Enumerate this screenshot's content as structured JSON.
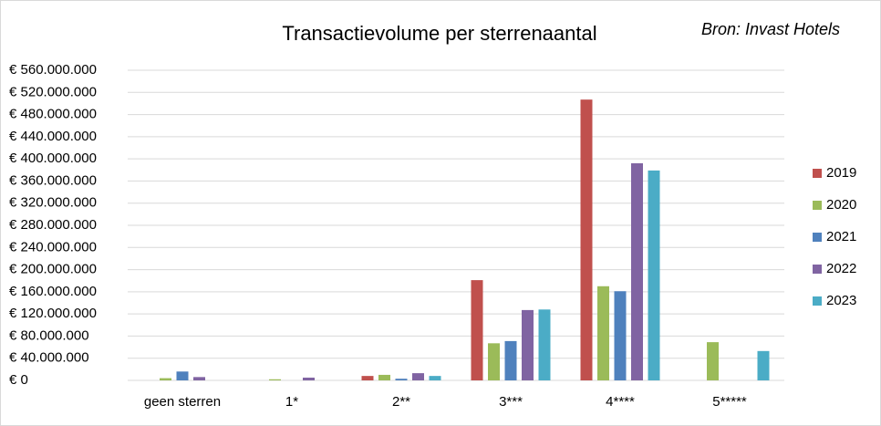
{
  "chart_data": {
    "type": "bar",
    "title": "Transactievolume per sterrenaantal",
    "subtitle": "Bron: Invast Hotels",
    "categories": [
      "geen sterren",
      "1*",
      "2**",
      "3***",
      "4****",
      "5*****"
    ],
    "series": [
      {
        "name": "2019",
        "color": "#c0504d",
        "values": [
          0,
          0,
          8000000,
          181000000,
          507000000,
          0
        ]
      },
      {
        "name": "2020",
        "color": "#9bbb59",
        "values": [
          4000000,
          2000000,
          10000000,
          67000000,
          170000000,
          69000000
        ]
      },
      {
        "name": "2021",
        "color": "#4f81bd",
        "values": [
          16000000,
          0,
          3000000,
          71000000,
          161000000,
          0
        ]
      },
      {
        "name": "2022",
        "color": "#8064a2",
        "values": [
          6000000,
          5000000,
          13000000,
          127000000,
          392000000,
          0
        ]
      },
      {
        "name": "2023",
        "color": "#4bacc6",
        "values": [
          0,
          0,
          8000000,
          128000000,
          379000000,
          53000000
        ]
      }
    ],
    "ylim": [
      0,
      560000000
    ],
    "yticks": [
      {
        "value": 0,
        "label": "€ 0"
      },
      {
        "value": 40000000,
        "label": "€ 40.000.000"
      },
      {
        "value": 80000000,
        "label": "€ 80.000.000"
      },
      {
        "value": 120000000,
        "label": "€ 120.000.000"
      },
      {
        "value": 160000000,
        "label": "€ 160.000.000"
      },
      {
        "value": 200000000,
        "label": "€ 200.000.000"
      },
      {
        "value": 240000000,
        "label": "€ 240.000.000"
      },
      {
        "value": 280000000,
        "label": "€ 280.000.000"
      },
      {
        "value": 320000000,
        "label": "€ 320.000.000"
      },
      {
        "value": 360000000,
        "label": "€ 360.000.000"
      },
      {
        "value": 400000000,
        "label": "€ 400.000.000"
      },
      {
        "value": 440000000,
        "label": "€ 440.000.000"
      },
      {
        "value": 480000000,
        "label": "€ 480.000.000"
      },
      {
        "value": 520000000,
        "label": "€ 520.000.000"
      },
      {
        "value": 560000000,
        "label": "€ 560.000.000"
      }
    ],
    "grid": true,
    "legend": "right"
  }
}
